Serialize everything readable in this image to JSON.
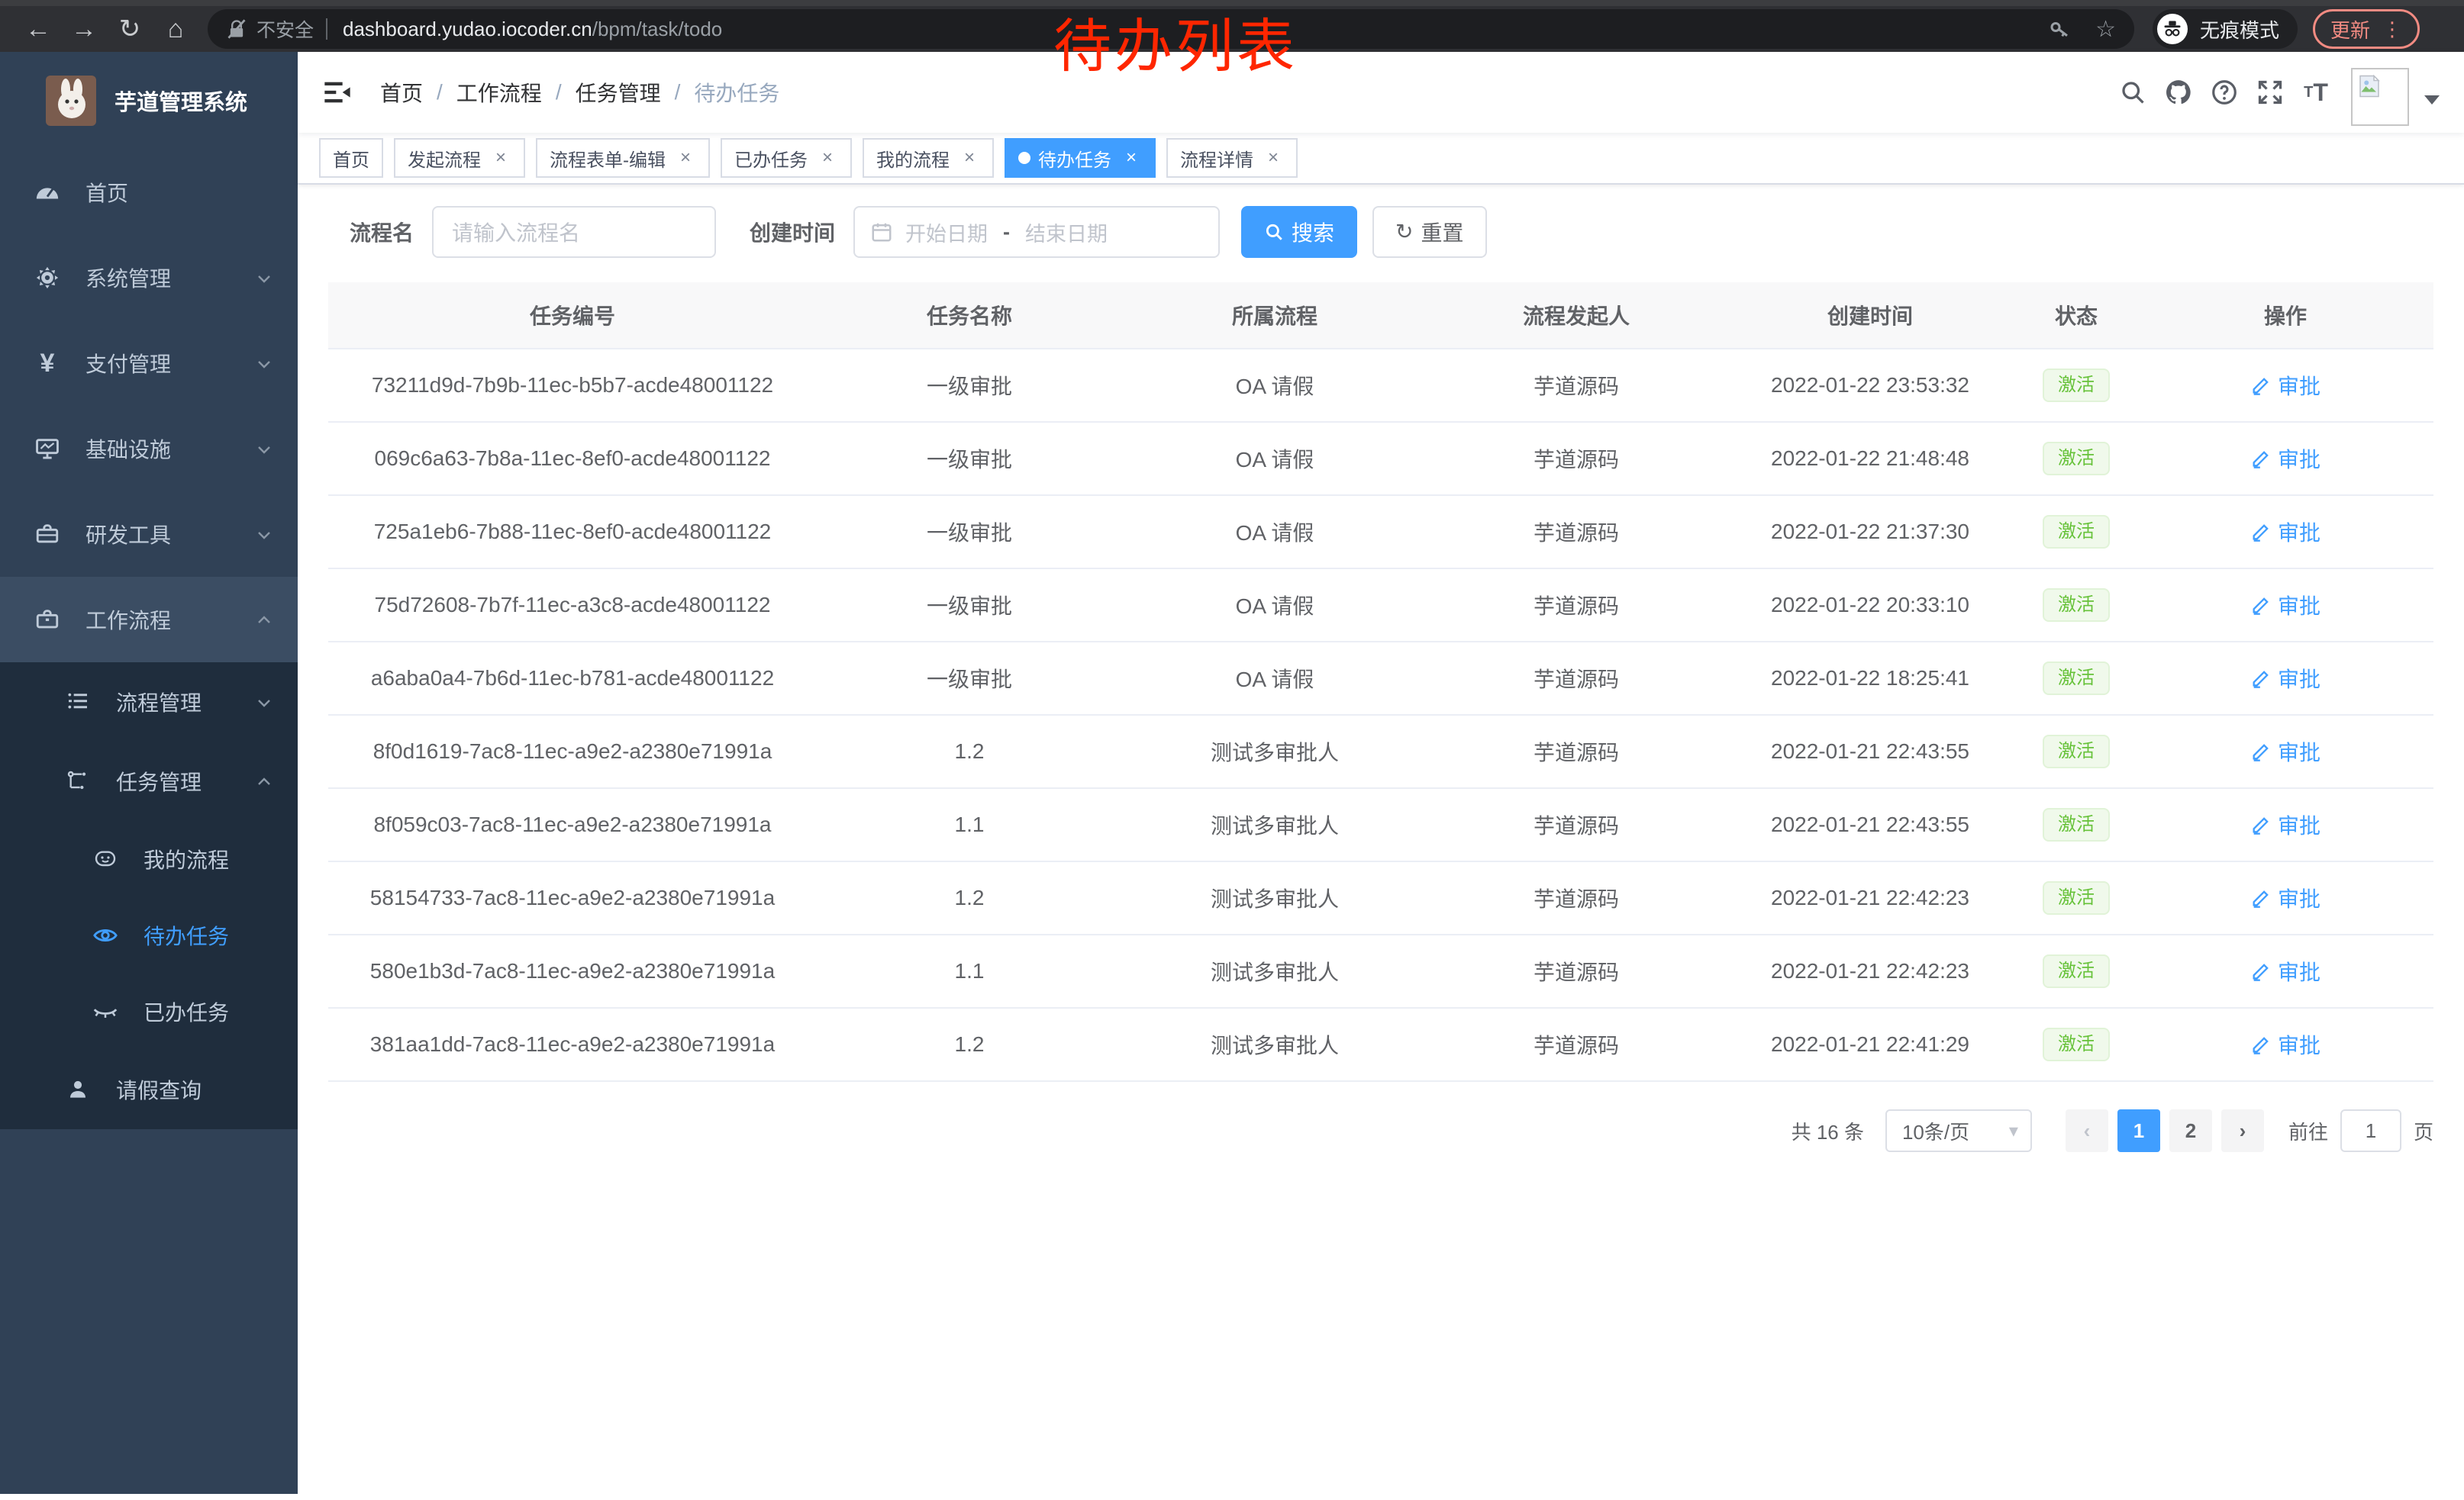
{
  "browser": {
    "security_label": "不安全",
    "url_host": "dashboard.yudao.iocoder.cn",
    "url_path": "/bpm/task/todo",
    "incognito_label": "无痕模式",
    "update_label": "更新"
  },
  "annotation": {
    "text": "待办列表",
    "color": "#ff2600"
  },
  "sidebar": {
    "logo_title": "芋道管理系统",
    "home": "首页",
    "system": "系统管理",
    "payment": "支付管理",
    "infra": "基础设施",
    "devtools": "研发工具",
    "workflow": "工作流程",
    "process_mgmt": "流程管理",
    "task_mgmt": "任务管理",
    "my_process": "我的流程",
    "todo_tasks": "待办任务",
    "done_tasks": "已办任务",
    "leave_query": "请假查询"
  },
  "navbar": {
    "breadcrumb": [
      "首页",
      "工作流程",
      "任务管理",
      "待办任务"
    ]
  },
  "tabs": [
    {
      "label": "首页",
      "closable": false,
      "active": false
    },
    {
      "label": "发起流程",
      "closable": true,
      "active": false
    },
    {
      "label": "流程表单-编辑",
      "closable": true,
      "active": false
    },
    {
      "label": "已办任务",
      "closable": true,
      "active": false
    },
    {
      "label": "我的流程",
      "closable": true,
      "active": false
    },
    {
      "label": "待办任务",
      "closable": true,
      "active": true
    },
    {
      "label": "流程详情",
      "closable": true,
      "active": false
    }
  ],
  "filter": {
    "name_label": "流程名",
    "name_placeholder": "请输入流程名",
    "time_label": "创建时间",
    "start_placeholder": "开始日期",
    "end_placeholder": "结束日期",
    "search_label": "搜索",
    "reset_label": "重置"
  },
  "table": {
    "columns": [
      "任务编号",
      "任务名称",
      "所属流程",
      "流程发起人",
      "创建时间",
      "状态",
      "操作"
    ],
    "rows": [
      {
        "id": "73211d9d-7b9b-11ec-b5b7-acde48001122",
        "name": "一级审批",
        "process": "OA 请假",
        "initiator": "芋道源码",
        "created": "2022-01-22 23:53:32",
        "status": "激活",
        "action": "审批"
      },
      {
        "id": "069c6a63-7b8a-11ec-8ef0-acde48001122",
        "name": "一级审批",
        "process": "OA 请假",
        "initiator": "芋道源码",
        "created": "2022-01-22 21:48:48",
        "status": "激活",
        "action": "审批"
      },
      {
        "id": "725a1eb6-7b88-11ec-8ef0-acde48001122",
        "name": "一级审批",
        "process": "OA 请假",
        "initiator": "芋道源码",
        "created": "2022-01-22 21:37:30",
        "status": "激活",
        "action": "审批"
      },
      {
        "id": "75d72608-7b7f-11ec-a3c8-acde48001122",
        "name": "一级审批",
        "process": "OA 请假",
        "initiator": "芋道源码",
        "created": "2022-01-22 20:33:10",
        "status": "激活",
        "action": "审批"
      },
      {
        "id": "a6aba0a4-7b6d-11ec-b781-acde48001122",
        "name": "一级审批",
        "process": "OA 请假",
        "initiator": "芋道源码",
        "created": "2022-01-22 18:25:41",
        "status": "激活",
        "action": "审批"
      },
      {
        "id": "8f0d1619-7ac8-11ec-a9e2-a2380e71991a",
        "name": "1.2",
        "process": "测试多审批人",
        "initiator": "芋道源码",
        "created": "2022-01-21 22:43:55",
        "status": "激活",
        "action": "审批"
      },
      {
        "id": "8f059c03-7ac8-11ec-a9e2-a2380e71991a",
        "name": "1.1",
        "process": "测试多审批人",
        "initiator": "芋道源码",
        "created": "2022-01-21 22:43:55",
        "status": "激活",
        "action": "审批"
      },
      {
        "id": "58154733-7ac8-11ec-a9e2-a2380e71991a",
        "name": "1.2",
        "process": "测试多审批人",
        "initiator": "芋道源码",
        "created": "2022-01-21 22:42:23",
        "status": "激活",
        "action": "审批"
      },
      {
        "id": "580e1b3d-7ac8-11ec-a9e2-a2380e71991a",
        "name": "1.1",
        "process": "测试多审批人",
        "initiator": "芋道源码",
        "created": "2022-01-21 22:42:23",
        "status": "激活",
        "action": "审批"
      },
      {
        "id": "381aa1dd-7ac8-11ec-a9e2-a2380e71991a",
        "name": "1.2",
        "process": "测试多审批人",
        "initiator": "芋道源码",
        "created": "2022-01-21 22:41:29",
        "status": "激活",
        "action": "审批"
      }
    ]
  },
  "pagination": {
    "total_text": "共 16 条",
    "page_size": "10条/页",
    "pages": [
      "1",
      "2"
    ],
    "active_page": "1",
    "goto_label": "前往",
    "goto_value": "1",
    "unit_label": "页"
  },
  "icons": {
    "back": "←",
    "forward": "→",
    "reload": "↻",
    "home": "⌂",
    "star": "☆",
    "more_vert": "⋮",
    "breadcrumb_separator": "/",
    "close": "×",
    "range_separator": "-",
    "reset_glyph": "↻",
    "prev": "‹",
    "next": "›",
    "select_caret": "▾"
  },
  "colors": {
    "accent": "#409eff",
    "success_text": "#67c23a",
    "success_bg": "#f0f9eb",
    "sidebar_bg": "#304156",
    "submenu_bg": "#1f2d3d",
    "annotation": "#ff2600",
    "update_pill": "#f28b82",
    "active_tab_bg": "#409eff"
  }
}
